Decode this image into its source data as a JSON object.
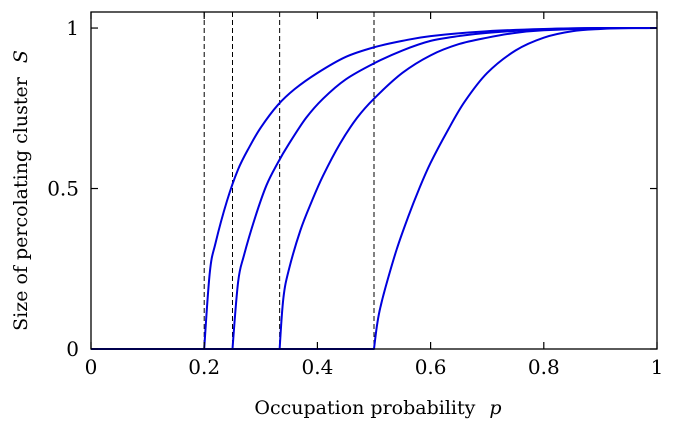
{
  "chart_data": {
    "type": "line",
    "title": "",
    "xlabel": "Occupation probability",
    "xlabel_var": "p",
    "ylabel": "Size of percolating cluster",
    "ylabel_var": "S",
    "xlim": [
      0,
      1
    ],
    "ylim": [
      0,
      1.05
    ],
    "xticks": [
      0,
      0.2,
      0.4,
      0.6,
      0.8,
      1
    ],
    "xtick_labels": [
      "0",
      "0.2",
      "0.4",
      "0.6",
      "0.8",
      "1"
    ],
    "yticks": [
      0,
      0.5,
      1
    ],
    "ytick_labels": [
      "0",
      "0.5",
      "1"
    ],
    "grid": false,
    "legend": "none",
    "line_color": "#0000dd",
    "threshold_color": "#000000",
    "thresholds": [
      0.2,
      0.25,
      0.3333,
      0.5
    ],
    "series": [
      {
        "x": [
          0,
          0.2,
          0.21,
          0.22,
          0.24,
          0.26,
          0.28,
          0.3,
          0.33,
          0.36,
          0.4,
          0.45,
          0.5,
          0.55,
          0.6,
          0.7,
          0.8,
          0.9,
          1.0
        ],
        "y": [
          0,
          0,
          0.24,
          0.33,
          0.46,
          0.56,
          0.63,
          0.69,
          0.76,
          0.81,
          0.86,
          0.91,
          0.94,
          0.96,
          0.975,
          0.99,
          0.997,
          1.0,
          1.0
        ]
      },
      {
        "x": [
          0,
          0.25,
          0.26,
          0.27,
          0.29,
          0.31,
          0.33,
          0.35,
          0.38,
          0.41,
          0.45,
          0.5,
          0.55,
          0.6,
          0.65,
          0.7,
          0.8,
          0.9,
          1.0
        ],
        "y": [
          0,
          0,
          0.21,
          0.29,
          0.41,
          0.51,
          0.58,
          0.64,
          0.72,
          0.78,
          0.84,
          0.89,
          0.93,
          0.96,
          0.975,
          0.985,
          0.996,
          1.0,
          1.0
        ]
      },
      {
        "x": [
          0,
          0.3333,
          0.34,
          0.35,
          0.37,
          0.39,
          0.41,
          0.44,
          0.47,
          0.5,
          0.55,
          0.6,
          0.65,
          0.7,
          0.75,
          0.8,
          0.9,
          1.0
        ],
        "y": [
          0,
          0,
          0.16,
          0.25,
          0.37,
          0.46,
          0.54,
          0.64,
          0.72,
          0.78,
          0.86,
          0.915,
          0.95,
          0.97,
          0.985,
          0.993,
          0.999,
          1.0
        ]
      },
      {
        "x": [
          0,
          0.5,
          0.505,
          0.51,
          0.52,
          0.54,
          0.56,
          0.58,
          0.6,
          0.63,
          0.66,
          0.7,
          0.75,
          0.8,
          0.85,
          0.9,
          0.95,
          1.0
        ],
        "y": [
          0,
          0,
          0.07,
          0.12,
          0.19,
          0.31,
          0.41,
          0.5,
          0.58,
          0.68,
          0.77,
          0.86,
          0.93,
          0.97,
          0.99,
          0.997,
          1.0,
          1.0
        ]
      }
    ]
  }
}
